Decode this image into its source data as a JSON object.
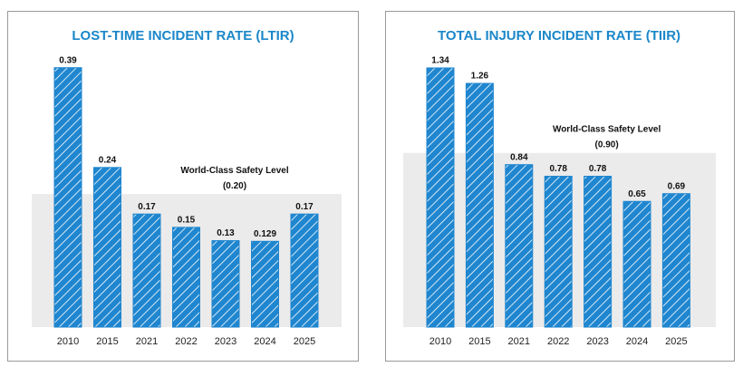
{
  "chart_data": [
    {
      "type": "bar",
      "title": "LOST-TIME INCIDENT RATE (LTIR)",
      "categories": [
        "2010",
        "2015",
        "2021",
        "2022",
        "2023",
        "2024",
        "2025"
      ],
      "values": [
        0.39,
        0.24,
        0.17,
        0.15,
        0.13,
        0.129,
        0.17
      ],
      "color": "#1f86cf",
      "ylim": [
        0,
        0.41
      ],
      "reference": {
        "label": "World-Class Safety Level",
        "value": 0.2,
        "value_label": "(0.20)",
        "color": "#ebebeb"
      }
    },
    {
      "type": "bar",
      "title": "TOTAL INJURY INCIDENT RATE (TIIR)",
      "categories": [
        "2010",
        "2015",
        "2021",
        "2022",
        "2023",
        "2024",
        "2025"
      ],
      "values": [
        1.34,
        1.26,
        0.84,
        0.78,
        0.78,
        0.65,
        0.69
      ],
      "color": "#1f86cf",
      "ylim": [
        0,
        1.41
      ],
      "reference": {
        "label": "World-Class Safety Level",
        "value": 0.9,
        "value_label": "(0.90)",
        "color": "#ebebeb"
      }
    }
  ]
}
